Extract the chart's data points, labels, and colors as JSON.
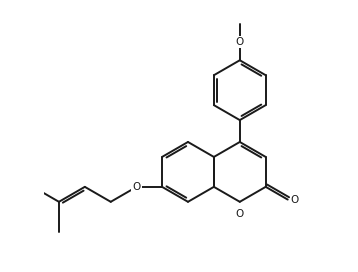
{
  "bg_color": "#ffffff",
  "line_color": "#1a1a1a",
  "line_width": 1.4,
  "dbo": 0.09,
  "figsize": [
    3.58,
    2.72
  ],
  "dpi": 100,
  "xlim": [
    -1.5,
    7.5
  ],
  "ylim": [
    -0.5,
    8.5
  ]
}
